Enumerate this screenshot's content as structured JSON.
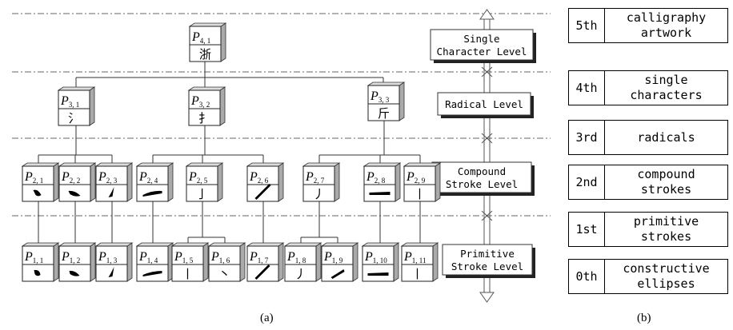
{
  "caption_a": "(a)",
  "caption_b": "(b)",
  "level_labels": [
    {
      "text": "Single\nCharacter Level"
    },
    {
      "text": "Radical Level"
    },
    {
      "text": "Compound\nStroke Level"
    },
    {
      "text": "Primitive\nStroke Level"
    }
  ],
  "nodes": [
    {
      "id": "4_1",
      "sub": "4, 1",
      "glyph": "浙"
    },
    {
      "id": "3_1",
      "sub": "3, 1",
      "glyph": "氵"
    },
    {
      "id": "3_2",
      "sub": "3, 2",
      "glyph": "扌"
    },
    {
      "id": "3_3",
      "sub": "3, 3",
      "glyph": "斤"
    },
    {
      "id": "2_1",
      "sub": "2, 1",
      "glyph": ""
    },
    {
      "id": "2_2",
      "sub": "2, 2",
      "glyph": ""
    },
    {
      "id": "2_3",
      "sub": "2, 3",
      "glyph": ""
    },
    {
      "id": "2_4",
      "sub": "2, 4",
      "glyph": ""
    },
    {
      "id": "2_5",
      "sub": "2, 5",
      "glyph": "亅"
    },
    {
      "id": "2_6",
      "sub": "2, 6",
      "glyph": ""
    },
    {
      "id": "2_7",
      "sub": "2, 7",
      "glyph": "丿"
    },
    {
      "id": "2_8",
      "sub": "2, 8",
      "glyph": ""
    },
    {
      "id": "2_9",
      "sub": "2, 9",
      "glyph": "丨"
    },
    {
      "id": "1_1",
      "sub": "1, 1",
      "glyph": ""
    },
    {
      "id": "1_2",
      "sub": "1, 2",
      "glyph": ""
    },
    {
      "id": "1_3",
      "sub": "1, 3",
      "glyph": ""
    },
    {
      "id": "1_4",
      "sub": "1, 4",
      "glyph": ""
    },
    {
      "id": "1_5",
      "sub": "1, 5",
      "glyph": "丨"
    },
    {
      "id": "1_6",
      "sub": "1, 6",
      "glyph": "丶"
    },
    {
      "id": "1_7",
      "sub": "1, 7",
      "glyph": ""
    },
    {
      "id": "1_8",
      "sub": "1, 8",
      "glyph": "丿"
    },
    {
      "id": "1_9",
      "sub": "1, 9",
      "glyph": ""
    },
    {
      "id": "1_10",
      "sub": "1, 10",
      "glyph": ""
    },
    {
      "id": "1_11",
      "sub": "1, 11",
      "glyph": "丨"
    }
  ],
  "levels_table": [
    {
      "ordinal": "5th",
      "desc": "calligraphy\nartwork"
    },
    {
      "ordinal": "4th",
      "desc": "single\ncharacters"
    },
    {
      "ordinal": "3rd",
      "desc": "radicals"
    },
    {
      "ordinal": "2nd",
      "desc": "compound\nstrokes"
    },
    {
      "ordinal": "1st",
      "desc": "primitive\nstrokes"
    },
    {
      "ordinal": "0th",
      "desc": "constructive\nellipses"
    }
  ]
}
